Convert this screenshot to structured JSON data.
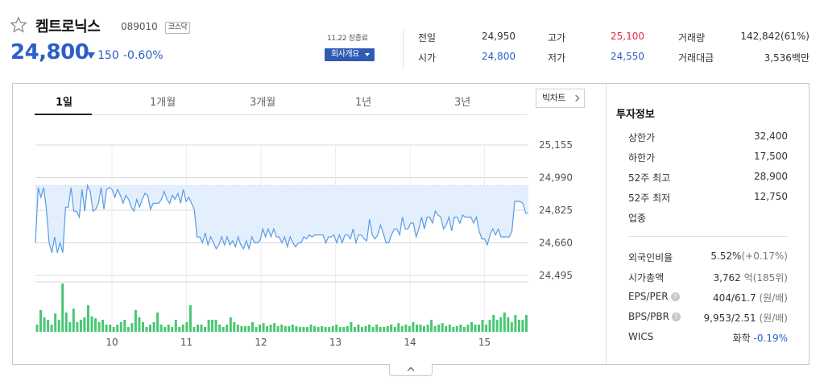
{
  "header": {
    "name": "켐트로닉스",
    "code": "089010",
    "market": "코스닥",
    "price": "24,800",
    "change": "150",
    "change_rate": "-0.60%",
    "time": "11.22 장종료",
    "company_btn": "회사개요"
  },
  "summary": [
    {
      "label": "전일",
      "value": "24,950",
      "color": "neutral"
    },
    {
      "label": "고가",
      "value": "25,100",
      "color": "up"
    },
    {
      "label": "거래량",
      "value": "142,842(61%)",
      "color": "neutral"
    },
    {
      "label": "시가",
      "value": "24,800",
      "color": "down"
    },
    {
      "label": "저가",
      "value": "24,550",
      "color": "down"
    },
    {
      "label": "거래대금",
      "value": "3,536백만",
      "color": "neutral"
    }
  ],
  "tabs": [
    "1일",
    "1개월",
    "3개월",
    "1년",
    "3년"
  ],
  "active_tab": "1일",
  "bigchart": "빅차트",
  "chart_data": {
    "type": "line",
    "y_ticks": [
      "25,155",
      "24,990",
      "24,825",
      "24,660",
      "24,495"
    ],
    "ylim": [
      24495,
      25155
    ],
    "reference_price": 24950,
    "x_ticks": [
      "10",
      "11",
      "12",
      "13",
      "14",
      "15"
    ],
    "prices": [
      24660,
      24940,
      24890,
      24940,
      24830,
      24660,
      24610,
      24690,
      24610,
      24660,
      24610,
      24840,
      24840,
      24940,
      24820,
      24820,
      24790,
      24930,
      24820,
      24950,
      24920,
      24820,
      24830,
      24860,
      24940,
      24830,
      24930,
      24940,
      24930,
      24890,
      24930,
      24900,
      24860,
      24900,
      24880,
      24840,
      24820,
      24880,
      24840,
      24880,
      24910,
      24900,
      24830,
      24860,
      24860,
      24860,
      24880,
      24920,
      24880,
      24860,
      24900,
      24880,
      24910,
      24860,
      24930,
      24870,
      24890,
      24860,
      24830,
      24690,
      24690,
      24660,
      24710,
      24650,
      24690,
      24660,
      24630,
      24650,
      24690,
      24650,
      24690,
      24650,
      24670,
      24640,
      24690,
      24650,
      24630,
      24670,
      24630,
      24690,
      24660,
      24660,
      24670,
      24730,
      24690,
      24730,
      24690,
      24730,
      24690,
      24690,
      24660,
      24690,
      24640,
      24690,
      24660,
      24640,
      24660,
      24660,
      24690,
      24680,
      24700,
      24690,
      24700,
      24700,
      24700,
      24700,
      24660,
      24690,
      24690,
      24700,
      24660,
      24700,
      24660,
      24700,
      24700,
      24680,
      24730,
      24660,
      24700,
      24700,
      24680,
      24670,
      24780,
      24700,
      24680,
      24700,
      24750,
      24710,
      24660,
      24660,
      24700,
      24730,
      24730,
      24700,
      24790,
      24730,
      24730,
      24760,
      24760,
      24690,
      24730,
      24790,
      24730,
      24790,
      24790,
      24760,
      24820,
      24800,
      24790,
      24730,
      24750,
      24790,
      24720,
      24790,
      24790,
      24760,
      24800,
      24790,
      24790,
      24790,
      24760,
      24790,
      24720,
      24680,
      24680,
      24650,
      24700,
      24730,
      24700,
      24730,
      24690,
      24690,
      24690,
      24690,
      24720,
      24870,
      24870,
      24870,
      24860,
      24810,
      24810
    ],
    "volume": [
      15,
      45,
      30,
      25,
      15,
      38,
      25,
      100,
      40,
      20,
      48,
      20,
      25,
      30,
      55,
      32,
      28,
      20,
      25,
      15,
      15,
      10,
      15,
      20,
      25,
      10,
      18,
      45,
      30,
      20,
      10,
      15,
      20,
      40,
      15,
      10,
      15,
      10,
      25,
      10,
      15,
      20,
      55,
      10,
      15,
      15,
      10,
      25,
      25,
      25,
      15,
      10,
      15,
      30,
      20,
      15,
      12,
      12,
      12,
      20,
      10,
      15,
      18,
      12,
      15,
      18,
      12,
      15,
      12,
      12,
      15,
      12,
      10,
      10,
      10,
      15,
      12,
      10,
      12,
      10,
      10,
      12,
      15,
      10,
      10,
      12,
      20,
      10,
      15,
      10,
      12,
      15,
      10,
      15,
      10,
      10,
      12,
      15,
      10,
      18,
      12,
      15,
      12,
      20,
      15,
      15,
      12,
      15,
      25,
      12,
      15,
      18,
      12,
      15,
      10,
      12,
      15,
      10,
      15,
      20,
      15,
      15,
      25,
      15,
      25,
      35,
      25,
      30,
      40,
      30,
      20,
      35,
      25,
      25,
      35
    ]
  },
  "invest": {
    "title": "투자정보",
    "rows": [
      {
        "label": "상한가",
        "value": "32,400",
        "color": "up"
      },
      {
        "label": "하한가",
        "value": "17,500",
        "color": "down"
      },
      {
        "label": "52주 최고",
        "value": "28,900",
        "color": "neutral"
      },
      {
        "label": "52주 최저",
        "value": "12,750",
        "color": "neutral"
      },
      {
        "label": "업종",
        "value": "",
        "color": "neutral"
      }
    ],
    "rows2": [
      {
        "label": "외국인비율",
        "value": "5.52%",
        "sub": "(+0.17%)",
        "help": false
      },
      {
        "label": "시가총액",
        "value": "3,762",
        "sub": "억(185위)",
        "help": false
      },
      {
        "label": "EPS/PER",
        "value": "404/61.7",
        "sub": "(원/배)",
        "help": true
      },
      {
        "label": "BPS/PBR",
        "value": "9,953/2.51",
        "sub": "(원/배)",
        "help": true
      }
    ],
    "wics_label": "WICS",
    "wics_value": "화학",
    "wics_change": "-0.19%"
  },
  "colors": {
    "up": "#e8283b",
    "down": "#2b5ec7",
    "line": "#5a9be6",
    "fill": "#e3effc",
    "volume": "#48c774"
  }
}
